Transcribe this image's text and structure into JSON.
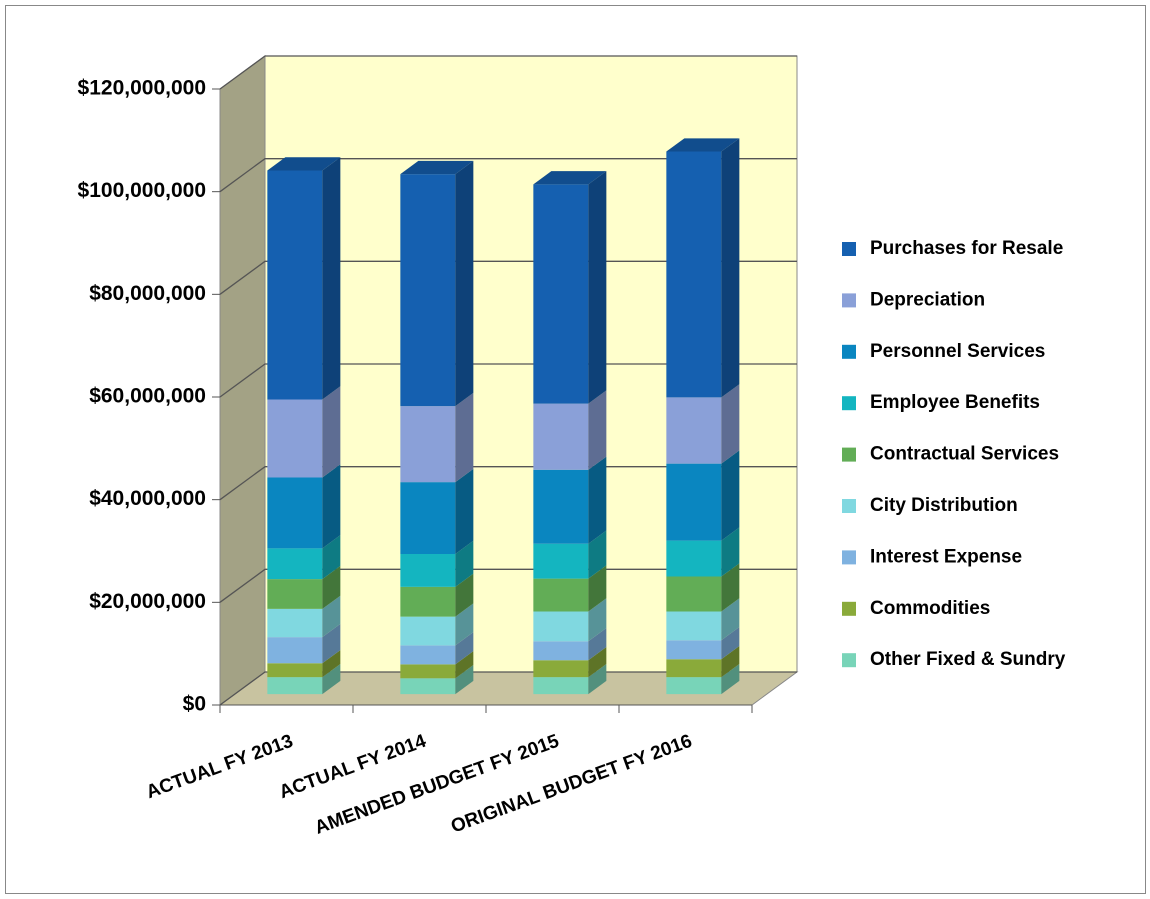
{
  "chart_data": {
    "type": "bar3d-stacked",
    "categories": [
      "ACTUAL FY 2013",
      "ACTUAL FY 2014",
      "AMENDED BUDGET FY 2015",
      "ORIGINAL BUDGET FY 2016"
    ],
    "series": [
      {
        "name": "Purchases for Resale",
        "color": "#1560b0",
        "values": [
          44600000,
          45200000,
          42700000,
          47900000
        ]
      },
      {
        "name": "Depreciation",
        "color": "#8aa0d8",
        "values": [
          15200000,
          14800000,
          12900000,
          12900000
        ]
      },
      {
        "name": "Personnel Services",
        "color": "#0a86c0",
        "values": [
          13800000,
          14000000,
          14400000,
          15000000
        ]
      },
      {
        "name": "Employee Benefits",
        "color": "#14b5c0",
        "values": [
          6000000,
          6400000,
          6800000,
          7000000
        ]
      },
      {
        "name": "Contractual Services",
        "color": "#62ad56",
        "values": [
          5800000,
          5800000,
          6400000,
          6800000
        ]
      },
      {
        "name": "City Distribution",
        "color": "#80d8e0",
        "values": [
          5500000,
          5600000,
          5800000,
          5600000
        ]
      },
      {
        "name": "Interest Expense",
        "color": "#7fb2e0",
        "values": [
          5100000,
          3700000,
          3700000,
          3700000
        ]
      },
      {
        "name": "Commodities",
        "color": "#8aaa3a",
        "values": [
          2700000,
          2700000,
          3300000,
          3500000
        ]
      },
      {
        "name": "Other Fixed & Sundry",
        "color": "#78d4b8",
        "values": [
          3300000,
          3100000,
          3300000,
          3300000
        ]
      }
    ],
    "ylim": [
      0,
      120000000
    ],
    "yticks": [
      {
        "value": 0,
        "label": "$0"
      },
      {
        "value": 20000000,
        "label": "$20,000,000"
      },
      {
        "value": 40000000,
        "label": "$40,000,000"
      },
      {
        "value": 60000000,
        "label": "$60,000,000"
      },
      {
        "value": 80000000,
        "label": "$80,000,000"
      },
      {
        "value": 100000000,
        "label": "$100,000,000"
      },
      {
        "value": 120000000,
        "label": "$120,000,000"
      }
    ],
    "grid": true,
    "legend": "right"
  }
}
